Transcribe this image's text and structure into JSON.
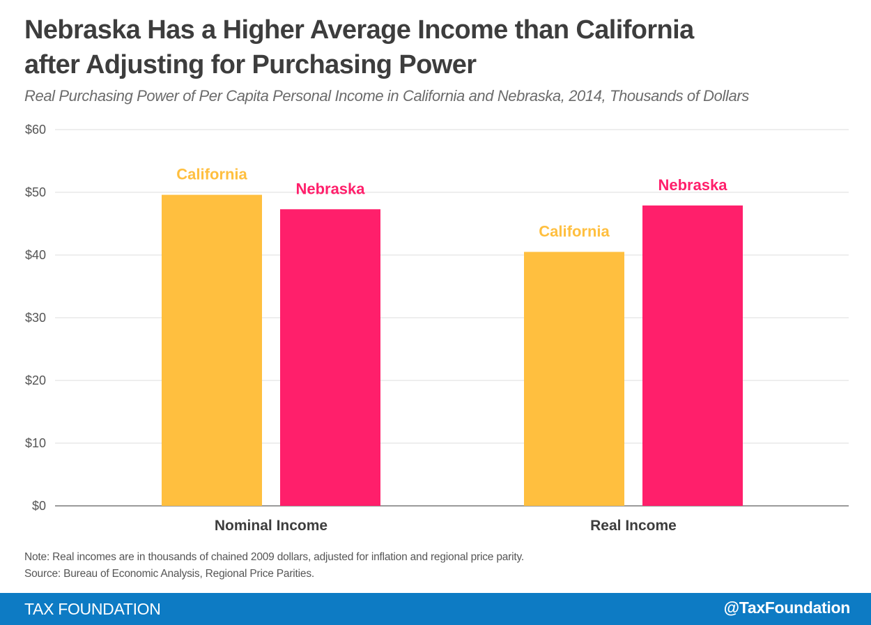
{
  "header": {
    "title_line1": "Nebraska Has a Higher Average Income than California",
    "title_line2": "after Adjusting for Purchasing Power",
    "subtitle": "Real Purchasing Power of Per Capita Personal Income in California and Nebraska, 2014, Thousands of Dollars"
  },
  "chart_data": {
    "type": "bar",
    "title": "Nebraska Has a Higher Average Income than California after Adjusting for Purchasing Power",
    "subtitle": "Real Purchasing Power of Per Capita Personal Income in California and Nebraska, 2014, Thousands of Dollars",
    "categories": [
      "Nominal Income",
      "Real Income"
    ],
    "series": [
      {
        "name": "California",
        "color": "#ffbf3f",
        "values": [
          49.6,
          40.5
        ]
      },
      {
        "name": "Nebraska",
        "color": "#ff1f6b",
        "values": [
          47.3,
          47.9
        ]
      }
    ],
    "xlabel": "",
    "ylabel": "",
    "ylim": [
      0,
      60
    ],
    "yticks": [
      0,
      10,
      20,
      30,
      40,
      50,
      60
    ],
    "ytick_labels": [
      "$0",
      "$10",
      "$20",
      "$30",
      "$40",
      "$50",
      "$60"
    ],
    "grid": true,
    "legend": "data-labels above bars"
  },
  "notes": {
    "note": "Note: Real incomes are in thousands of chained 2009 dollars, adjusted for inflation and regional price parity.",
    "source": "Source: Bureau of Economic Analysis, Regional Price Parities."
  },
  "footer": {
    "brand": "TAX FOUNDATION",
    "handle": "@TaxFoundation",
    "color": "#0d7bc4"
  },
  "colors": {
    "title": "#3d3d3d",
    "grid": "#e3e3e3",
    "axis": "#9a9a9a"
  }
}
